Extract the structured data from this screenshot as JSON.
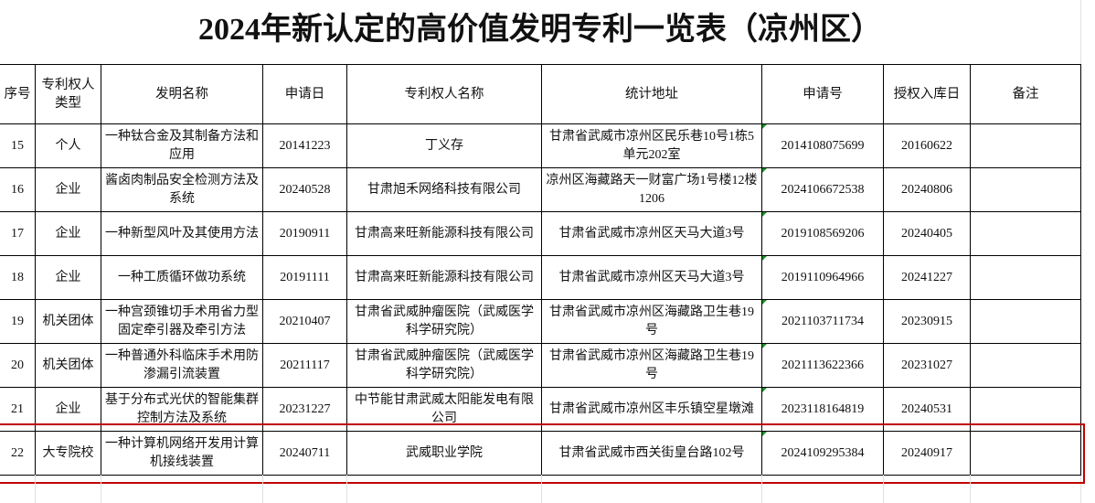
{
  "title": "2024年新认定的高价值发明专利一览表（凉州区）",
  "headers": [
    "序号",
    "专利权人类型",
    "发明名称",
    "申请日",
    "专利权人名称",
    "统计地址",
    "申请号",
    "授权入库日",
    "备注"
  ],
  "rows": [
    [
      "15",
      "个人",
      "一种钛合金及其制备方法和应用",
      "20141223",
      "丁义存",
      "甘肃省武威市凉州区民乐巷10号1栋5单元202室",
      "2014108075699",
      "20160622",
      ""
    ],
    [
      "16",
      "企业",
      "酱卤肉制品安全检测方法及系统",
      "20240528",
      "甘肃旭禾网络科技有限公司",
      "凉州区海藏路天一财富广场1号楼12楼1206",
      "2024106672538",
      "20240806",
      ""
    ],
    [
      "17",
      "企业",
      "一种新型风叶及其使用方法",
      "20190911",
      "甘肃高来旺新能源科技有限公司",
      "甘肃省武威市凉州区天马大道3号",
      "2019108569206",
      "20240405",
      ""
    ],
    [
      "18",
      "企业",
      "一种工质循环做功系统",
      "20191111",
      "甘肃高来旺新能源科技有限公司",
      "甘肃省武威市凉州区天马大道3号",
      "2019110964966",
      "20241227",
      ""
    ],
    [
      "19",
      "机关团体",
      "一种宫颈锥切手术用省力型固定牵引器及牵引方法",
      "20210407",
      "甘肃省武威肿瘤医院（武威医学科学研究院）",
      "甘肃省武威市凉州区海藏路卫生巷19号",
      "2021103711734",
      "20230915",
      ""
    ],
    [
      "20",
      "机关团体",
      "一种普通外科临床手术用防渗漏引流装置",
      "20211117",
      "甘肃省武威肿瘤医院（武威医学科学研究院）",
      "甘肃省武威市凉州区海藏路卫生巷19号",
      "2021113622366",
      "20231027",
      ""
    ],
    [
      "21",
      "企业",
      "基于分布式光伏的智能集群控制方法及系统",
      "20231227",
      "中节能甘肃武威太阳能发电有限公司",
      "甘肃省武威市凉州区丰乐镇空星墩滩",
      "2023118164819",
      "20240531",
      ""
    ],
    [
      "22",
      "大专院校",
      "一种计算机网络开发用计算机接线装置",
      "20240711",
      "武威职业学院",
      "甘肃省武威市西关街皇台路102号",
      "2024109295384",
      "20240917",
      ""
    ]
  ],
  "selected_row": "22",
  "colors": {
    "selection_border": "#c00000",
    "comment_marker": "#1a8f2a"
  }
}
